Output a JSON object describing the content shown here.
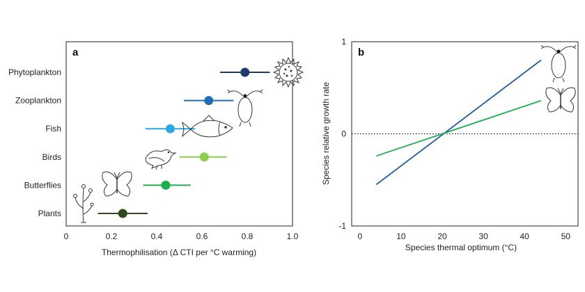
{
  "chart_data": [
    {
      "panel": "a",
      "type": "scatter",
      "style": "dot-with-horizontal-interval",
      "categories": [
        "Phytoplankton",
        "Zooplankton",
        "Fish",
        "Birds",
        "Butterflies",
        "Plants"
      ],
      "values": [
        0.79,
        0.63,
        0.46,
        0.61,
        0.44,
        0.25
      ],
      "intervals": [
        [
          0.68,
          0.9
        ],
        [
          0.52,
          0.74
        ],
        [
          0.35,
          0.57
        ],
        [
          0.5,
          0.71
        ],
        [
          0.34,
          0.55
        ],
        [
          0.14,
          0.36
        ]
      ],
      "colors": [
        "#1f3b6e",
        "#1f6fb5",
        "#2aa8e0",
        "#8ccf4f",
        "#1aaf4b",
        "#2f4a1f"
      ],
      "icons": [
        "phytoplankton-icon",
        "zooplankton-icon",
        "fish-icon",
        "bird-icon",
        "butterfly-icon",
        "plant-icon"
      ],
      "xlabel": "Thermophilisation (Δ CTI per °C warming)",
      "ylabel": "",
      "xlim": [
        0,
        1.0
      ],
      "xticks": [
        "0",
        "0.2",
        "0.4",
        "0.6",
        "0.8",
        "1.0"
      ],
      "grid": false
    },
    {
      "panel": "b",
      "type": "line",
      "series": [
        {
          "x": [
            4,
            44
          ],
          "values": [
            -0.55,
            0.8
          ],
          "color": "#1f5aa6",
          "icon": "zooplankton-icon"
        },
        {
          "x": [
            4,
            44
          ],
          "values": [
            -0.24,
            0.36
          ],
          "color": "#1aaf4b",
          "icon": "butterfly-icon"
        }
      ],
      "reference_line": {
        "y": 0,
        "style": "dotted"
      },
      "xlabel": "Species thermal optimum (°C)",
      "ylabel": "Species relative growth rate",
      "xlim": [
        -2,
        53
      ],
      "ylim": [
        -1,
        1
      ],
      "xticks": [
        "0",
        "10",
        "20",
        "30",
        "40",
        "50"
      ],
      "yticks": [
        "-1",
        "0",
        "1"
      ],
      "grid": false
    }
  ]
}
